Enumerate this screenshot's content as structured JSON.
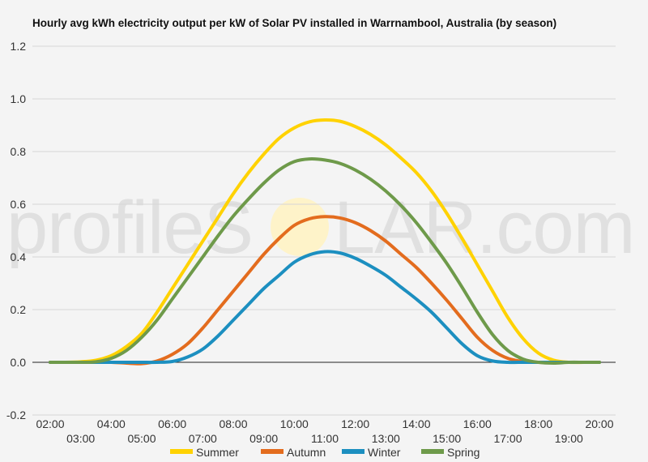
{
  "watermark": {
    "left": "profileS",
    "right": "LAR.com",
    "sun_color": "#fff3c4"
  },
  "chart_data": {
    "type": "line",
    "title": "Hourly avg kWh electricity output per kW of Solar PV installed in Warrnambool, Australia (by season)",
    "xlabel": "",
    "ylabel": "",
    "ylim": [
      -0.2,
      1.2
    ],
    "yticks": [
      "-0.2",
      "0.0",
      "0.2",
      "0.4",
      "0.6",
      "0.8",
      "1.0",
      "1.2"
    ],
    "x_tick_labels_upper": [
      "02:00",
      "04:00",
      "06:00",
      "08:00",
      "10:00",
      "12:00",
      "14:00",
      "16:00",
      "18:00",
      "20:00"
    ],
    "x_tick_labels_lower": [
      "03:00",
      "05:00",
      "07:00",
      "09:00",
      "11:00",
      "13:00",
      "15:00",
      "17:00",
      "19:00"
    ],
    "grid": true,
    "legend_position": "bottom",
    "x": [
      2,
      2.5,
      3,
      3.5,
      4,
      4.5,
      5,
      5.5,
      6,
      6.5,
      7,
      7.5,
      8,
      8.5,
      9,
      9.5,
      10,
      10.5,
      11,
      11.5,
      12,
      12.5,
      13,
      13.5,
      14,
      14.5,
      15,
      15.5,
      16,
      16.5,
      17,
      17.5,
      18,
      18.5,
      19,
      19.5,
      20
    ],
    "series": [
      {
        "name": "Summer",
        "color": "#ffd200",
        "values": [
          0,
          0,
          0.002,
          0.008,
          0.025,
          0.06,
          0.11,
          0.19,
          0.28,
          0.37,
          0.46,
          0.55,
          0.64,
          0.72,
          0.79,
          0.85,
          0.89,
          0.913,
          0.92,
          0.915,
          0.895,
          0.865,
          0.825,
          0.775,
          0.72,
          0.65,
          0.565,
          0.47,
          0.37,
          0.27,
          0.17,
          0.09,
          0.035,
          0.008,
          0,
          0,
          0
        ]
      },
      {
        "name": "Autumn",
        "color": "#e36c1e",
        "values": [
          0,
          0,
          0,
          0,
          0,
          -0.003,
          -0.005,
          0.005,
          0.03,
          0.07,
          0.13,
          0.2,
          0.27,
          0.34,
          0.41,
          0.47,
          0.52,
          0.545,
          0.553,
          0.548,
          0.53,
          0.5,
          0.46,
          0.41,
          0.36,
          0.3,
          0.235,
          0.165,
          0.095,
          0.045,
          0.015,
          0.003,
          0,
          0,
          0,
          0,
          0
        ]
      },
      {
        "name": "Winter",
        "color": "#1c8fc0",
        "values": [
          0,
          0,
          0,
          0,
          0,
          0,
          0,
          0,
          0.003,
          0.02,
          0.05,
          0.1,
          0.16,
          0.22,
          0.28,
          0.33,
          0.38,
          0.408,
          0.42,
          0.415,
          0.395,
          0.365,
          0.33,
          0.285,
          0.24,
          0.19,
          0.13,
          0.07,
          0.025,
          0.005,
          0,
          0,
          0,
          0,
          0,
          0,
          0
        ]
      },
      {
        "name": "Spring",
        "color": "#6e9a4a",
        "values": [
          0,
          0,
          0,
          0.002,
          0.015,
          0.045,
          0.095,
          0.16,
          0.24,
          0.32,
          0.4,
          0.48,
          0.555,
          0.62,
          0.68,
          0.73,
          0.762,
          0.772,
          0.768,
          0.755,
          0.73,
          0.695,
          0.65,
          0.595,
          0.53,
          0.455,
          0.375,
          0.285,
          0.19,
          0.105,
          0.045,
          0.012,
          0,
          -0.003,
          0,
          0,
          0
        ]
      }
    ]
  }
}
